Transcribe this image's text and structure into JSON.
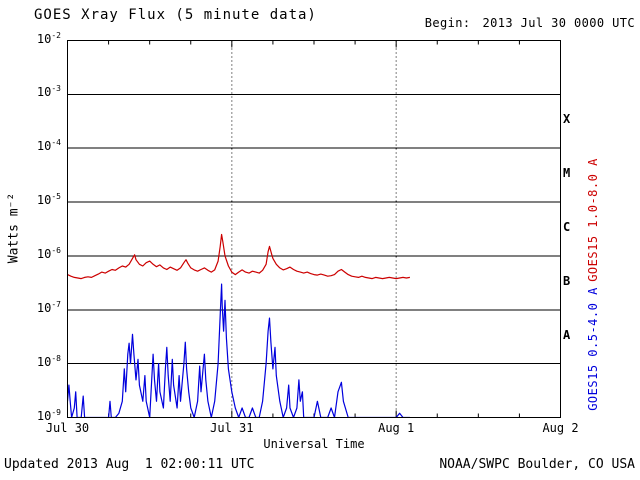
{
  "header": {
    "title": "GOES Xray Flux (5 minute data)",
    "begin_label": "Begin:",
    "begin_value": "2013 Jul 30 0000 UTC"
  },
  "footer": {
    "updated": "Updated 2013 Aug  1 02:00:11 UTC",
    "credit": "NOAA/SWPC Boulder, CO USA"
  },
  "chart_data": {
    "type": "line",
    "title": "GOES Xray Flux (5 minute data)",
    "xlabel": "Universal Time",
    "ylabel": "Watts m⁻²",
    "x_range_hours": [
      0,
      72
    ],
    "y_exponent_range": [
      -9,
      -2
    ],
    "y_scale": "log",
    "grid": "horizontal-solid-decades",
    "y_ticks": [
      "10^-2",
      "10^-3",
      "10^-4",
      "10^-5",
      "10^-6",
      "10^-7",
      "10^-8",
      "10^-9"
    ],
    "grid_exponents": [
      -3,
      -4,
      -5,
      -6,
      -7,
      -8
    ],
    "day_lines_hours": [
      24,
      48
    ],
    "x_ticks": [
      {
        "hour": 0,
        "label": "Jul 30"
      },
      {
        "hour": 24,
        "label": "Jul 31"
      },
      {
        "hour": 48,
        "label": "Aug 1"
      },
      {
        "hour": 72,
        "label": "Aug 2"
      }
    ],
    "flare_classes": [
      {
        "label": "X",
        "log_center": -3.5
      },
      {
        "label": "M",
        "log_center": -4.5
      },
      {
        "label": "C",
        "log_center": -5.5
      },
      {
        "label": "B",
        "log_center": -6.5
      },
      {
        "label": "A",
        "log_center": -7.5
      }
    ],
    "legend_position": "right-rotated",
    "series": [
      {
        "name": "GOES15 1.0-8.0 A",
        "color": "#cc0000",
        "points": [
          [
            0,
            4.5e-07
          ],
          [
            0.5,
            4.2e-07
          ],
          [
            1,
            4e-07
          ],
          [
            1.5,
            3.9e-07
          ],
          [
            2,
            3.8e-07
          ],
          [
            2.5,
            4e-07
          ],
          [
            3,
            4.1e-07
          ],
          [
            3.5,
            4e-07
          ],
          [
            4,
            4.3e-07
          ],
          [
            4.5,
            4.6e-07
          ],
          [
            5,
            5e-07
          ],
          [
            5.5,
            4.8e-07
          ],
          [
            6,
            5.2e-07
          ],
          [
            6.5,
            5.6e-07
          ],
          [
            7,
            5.4e-07
          ],
          [
            7.5,
            6e-07
          ],
          [
            8,
            6.5e-07
          ],
          [
            8.5,
            6.2e-07
          ],
          [
            9,
            7e-07
          ],
          [
            9.5,
            9e-07
          ],
          [
            9.8,
            1.05e-06
          ],
          [
            10,
            8.5e-07
          ],
          [
            10.5,
            7e-07
          ],
          [
            11,
            6.5e-07
          ],
          [
            11.5,
            7.5e-07
          ],
          [
            12,
            8e-07
          ],
          [
            12.5,
            7e-07
          ],
          [
            13,
            6.3e-07
          ],
          [
            13.5,
            6.8e-07
          ],
          [
            14,
            6e-07
          ],
          [
            14.5,
            5.6e-07
          ],
          [
            15,
            6.2e-07
          ],
          [
            15.5,
            5.8e-07
          ],
          [
            16,
            5.4e-07
          ],
          [
            16.5,
            6e-07
          ],
          [
            17,
            7.5e-07
          ],
          [
            17.3,
            8.5e-07
          ],
          [
            17.6,
            7.2e-07
          ],
          [
            18,
            6e-07
          ],
          [
            18.5,
            5.5e-07
          ],
          [
            19,
            5.2e-07
          ],
          [
            19.5,
            5.6e-07
          ],
          [
            20,
            6e-07
          ],
          [
            20.5,
            5.4e-07
          ],
          [
            21,
            5e-07
          ],
          [
            21.5,
            5.5e-07
          ],
          [
            22,
            8e-07
          ],
          [
            22.3,
            1.5e-06
          ],
          [
            22.5,
            2.5e-06
          ],
          [
            22.7,
            1.8e-06
          ],
          [
            23,
            1e-06
          ],
          [
            23.5,
            6.5e-07
          ],
          [
            24,
            5e-07
          ],
          [
            24.5,
            4.5e-07
          ],
          [
            25,
            5e-07
          ],
          [
            25.5,
            5.5e-07
          ],
          [
            26,
            5e-07
          ],
          [
            26.5,
            4.8e-07
          ],
          [
            27,
            5.2e-07
          ],
          [
            27.5,
            5e-07
          ],
          [
            28,
            4.8e-07
          ],
          [
            28.5,
            5.4e-07
          ],
          [
            29,
            7e-07
          ],
          [
            29.3,
            1.2e-06
          ],
          [
            29.5,
            1.5e-06
          ],
          [
            29.8,
            1.1e-06
          ],
          [
            30,
            9e-07
          ],
          [
            30.5,
            7e-07
          ],
          [
            31,
            6e-07
          ],
          [
            31.5,
            5.5e-07
          ],
          [
            32,
            5.8e-07
          ],
          [
            32.5,
            6.2e-07
          ],
          [
            33,
            5.6e-07
          ],
          [
            33.5,
            5.2e-07
          ],
          [
            34,
            5e-07
          ],
          [
            34.5,
            4.8e-07
          ],
          [
            35,
            5e-07
          ],
          [
            35.5,
            4.7e-07
          ],
          [
            36,
            4.5e-07
          ],
          [
            36.5,
            4.4e-07
          ],
          [
            37,
            4.6e-07
          ],
          [
            37.5,
            4.4e-07
          ],
          [
            38,
            4.2e-07
          ],
          [
            38.5,
            4.3e-07
          ],
          [
            39,
            4.5e-07
          ],
          [
            39.5,
            5.2e-07
          ],
          [
            40,
            5.6e-07
          ],
          [
            40.5,
            5e-07
          ],
          [
            41,
            4.5e-07
          ],
          [
            41.5,
            4.2e-07
          ],
          [
            42,
            4.1e-07
          ],
          [
            42.5,
            4e-07
          ],
          [
            43,
            4.2e-07
          ],
          [
            43.5,
            4e-07
          ],
          [
            44,
            3.9e-07
          ],
          [
            44.5,
            3.8e-07
          ],
          [
            45,
            4e-07
          ],
          [
            45.5,
            3.9e-07
          ],
          [
            46,
            3.8e-07
          ],
          [
            46.5,
            3.9e-07
          ],
          [
            47,
            4e-07
          ],
          [
            47.5,
            3.9e-07
          ],
          [
            48,
            3.8e-07
          ],
          [
            48.5,
            3.9e-07
          ],
          [
            49,
            4e-07
          ],
          [
            49.5,
            3.9e-07
          ],
          [
            50,
            4e-07
          ]
        ]
      },
      {
        "name": "GOES15 0.5-4.0 A",
        "color": "#0000dd",
        "points": [
          [
            0,
            2e-09
          ],
          [
            0.2,
            4e-09
          ],
          [
            0.4,
            2e-09
          ],
          [
            0.6,
            1e-09
          ],
          [
            1.0,
            1.5e-09
          ],
          [
            1.2,
            3e-09
          ],
          [
            1.4,
            1e-09
          ],
          [
            2.0,
            1e-09
          ],
          [
            2.3,
            2.5e-09
          ],
          [
            2.5,
            1e-09
          ],
          [
            3.0,
            1e-09
          ],
          [
            3.5,
            1e-09
          ],
          [
            4.0,
            1e-09
          ],
          [
            4.5,
            1e-09
          ],
          [
            5.0,
            1e-09
          ],
          [
            5.5,
            1e-09
          ],
          [
            6.0,
            1e-09
          ],
          [
            6.2,
            2e-09
          ],
          [
            6.4,
            1e-09
          ],
          [
            7.0,
            1e-09
          ],
          [
            7.5,
            1.2e-09
          ],
          [
            8.0,
            2e-09
          ],
          [
            8.3,
            8e-09
          ],
          [
            8.5,
            3e-09
          ],
          [
            8.8,
            1.5e-08
          ],
          [
            9.0,
            2.4e-08
          ],
          [
            9.2,
            1e-08
          ],
          [
            9.5,
            3.5e-08
          ],
          [
            9.7,
            1.5e-08
          ],
          [
            10.0,
            5e-09
          ],
          [
            10.3,
            1.2e-08
          ],
          [
            10.5,
            4e-09
          ],
          [
            11.0,
            2e-09
          ],
          [
            11.3,
            6e-09
          ],
          [
            11.5,
            2e-09
          ],
          [
            12.0,
            1e-09
          ],
          [
            12.3,
            5e-09
          ],
          [
            12.5,
            1.5e-08
          ],
          [
            12.7,
            5e-09
          ],
          [
            13.0,
            2e-09
          ],
          [
            13.3,
            1e-08
          ],
          [
            13.5,
            3e-09
          ],
          [
            14.0,
            1.5e-09
          ],
          [
            14.3,
            8e-09
          ],
          [
            14.5,
            2e-08
          ],
          [
            14.7,
            6e-09
          ],
          [
            15.0,
            2e-09
          ],
          [
            15.3,
            1.2e-08
          ],
          [
            15.5,
            4e-09
          ],
          [
            16.0,
            1.5e-09
          ],
          [
            16.3,
            6e-09
          ],
          [
            16.5,
            2e-09
          ],
          [
            17.0,
            1e-08
          ],
          [
            17.2,
            2.5e-08
          ],
          [
            17.4,
            8e-09
          ],
          [
            17.7,
            3e-09
          ],
          [
            18.0,
            1.5e-09
          ],
          [
            18.5,
            1e-09
          ],
          [
            19.0,
            2e-09
          ],
          [
            19.3,
            9e-09
          ],
          [
            19.5,
            3e-09
          ],
          [
            20.0,
            1.5e-08
          ],
          [
            20.2,
            5e-09
          ],
          [
            20.5,
            2e-09
          ],
          [
            21.0,
            1e-09
          ],
          [
            21.5,
            2e-09
          ],
          [
            22.0,
            1e-08
          ],
          [
            22.3,
            8e-08
          ],
          [
            22.5,
            3e-07
          ],
          [
            22.6,
            1.2e-07
          ],
          [
            22.8,
            4e-08
          ],
          [
            23.0,
            1.5e-07
          ],
          [
            23.2,
            3e-08
          ],
          [
            23.5,
            8e-09
          ],
          [
            24.0,
            3e-09
          ],
          [
            24.5,
            1.5e-09
          ],
          [
            25.0,
            1e-09
          ],
          [
            25.5,
            1.5e-09
          ],
          [
            26.0,
            1e-09
          ],
          [
            26.5,
            1e-09
          ],
          [
            27.0,
            1.5e-09
          ],
          [
            27.5,
            1e-09
          ],
          [
            28.0,
            1e-09
          ],
          [
            28.5,
            2e-09
          ],
          [
            29.0,
            1e-08
          ],
          [
            29.3,
            4e-08
          ],
          [
            29.5,
            7e-08
          ],
          [
            29.7,
            2.5e-08
          ],
          [
            30.0,
            8e-09
          ],
          [
            30.3,
            2e-08
          ],
          [
            30.5,
            6e-09
          ],
          [
            31.0,
            2e-09
          ],
          [
            31.5,
            1e-09
          ],
          [
            32.0,
            1.5e-09
          ],
          [
            32.3,
            4e-09
          ],
          [
            32.5,
            1.5e-09
          ],
          [
            33.0,
            1e-09
          ],
          [
            33.5,
            1.5e-09
          ],
          [
            33.8,
            5e-09
          ],
          [
            34.0,
            2e-09
          ],
          [
            34.3,
            3e-09
          ],
          [
            34.5,
            1e-09
          ],
          [
            35.0,
            1e-09
          ],
          [
            35.5,
            1e-09
          ],
          [
            36.0,
            1e-09
          ],
          [
            36.5,
            2e-09
          ],
          [
            37.0,
            1e-09
          ],
          [
            38.0,
            1e-09
          ],
          [
            38.5,
            1.5e-09
          ],
          [
            39.0,
            1e-09
          ],
          [
            39.5,
            3e-09
          ],
          [
            40.0,
            4.5e-09
          ],
          [
            40.3,
            2e-09
          ],
          [
            41.0,
            1e-09
          ],
          [
            42.0,
            1e-09
          ],
          [
            43.0,
            1e-09
          ],
          [
            44.0,
            1e-09
          ],
          [
            45.0,
            1e-09
          ],
          [
            46.0,
            1e-09
          ],
          [
            47.0,
            1e-09
          ],
          [
            48.0,
            1e-09
          ],
          [
            48.5,
            1.2e-09
          ],
          [
            49.0,
            1e-09
          ],
          [
            49.5,
            1e-09
          ],
          [
            50.0,
            1e-09
          ]
        ]
      }
    ]
  }
}
